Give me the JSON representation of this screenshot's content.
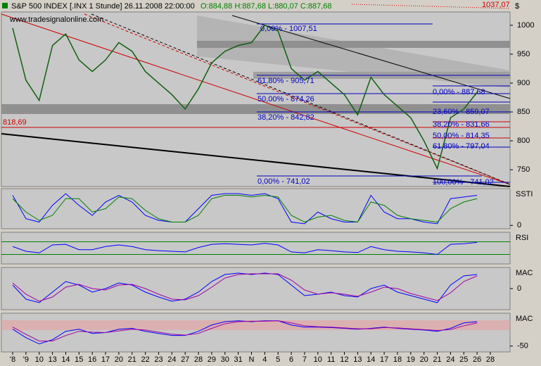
{
  "chart_data": [
    {
      "type": "line",
      "title": "S&P 500 INDEX [.INX 1 Stunde] 26.11.2008 22:00:00",
      "subtitle": "O:884,88 H:887,68 L:880,07 C:887,68",
      "watermark": "www.tradesignalonline.com",
      "axis_unit": "$",
      "categories": [
        "'8",
        "'9",
        "10",
        "13",
        "14",
        "15",
        "16",
        "17",
        "20",
        "21",
        "22",
        "23",
        "24",
        "27",
        "28",
        "29",
        "30",
        "31",
        "N",
        "4",
        "5",
        "6",
        "7",
        "10",
        "11",
        "12",
        "13",
        "14",
        "17",
        "18",
        "19",
        "20",
        "21",
        "24",
        "25",
        "26",
        "28"
      ],
      "color": "#106010",
      "values": [
        995,
        905,
        870,
        965,
        985,
        940,
        920,
        940,
        970,
        955,
        920,
        900,
        880,
        855,
        890,
        935,
        955,
        965,
        970,
        1000,
        990,
        925,
        905,
        920,
        900,
        880,
        845,
        910,
        880,
        860,
        840,
        800,
        752,
        840,
        855,
        884,
        null
      ],
      "ylim": [
        721,
        1023
      ],
      "yticks": [
        750,
        800,
        850,
        900,
        950,
        1000
      ],
      "annotations": [
        "1037,07",
        "818,69",
        "0,00% - 1007,51",
        "61,80% - 905,71",
        "50,00% - 874,26",
        "38,20% - 842,82",
        "0,00% - 741,02",
        "0,00% - 887,68",
        "23,60% - 859,07",
        "38,20% - 831,66",
        "50,00% - 814,35",
        "61,80% - 797,04",
        "100,00% - 741,02"
      ]
    },
    {
      "type": "line",
      "title": "SSTI",
      "ylim": [
        -10,
        110
      ],
      "yticks": [
        0
      ],
      "series": [
        {
          "color": "#0000ff",
          "values": [
            90,
            20,
            10,
            60,
            95,
            60,
            30,
            70,
            90,
            70,
            30,
            15,
            10,
            10,
            50,
            90,
            95,
            95,
            90,
            95,
            80,
            10,
            5,
            40,
            20,
            10,
            10,
            90,
            40,
            20,
            20,
            10,
            5,
            80,
            85,
            90,
            null
          ]
        },
        {
          "color": "#008000",
          "values": [
            80,
            40,
            15,
            30,
            80,
            80,
            40,
            50,
            85,
            80,
            45,
            20,
            10,
            10,
            30,
            80,
            90,
            90,
            85,
            90,
            85,
            30,
            10,
            25,
            30,
            15,
            10,
            70,
            60,
            30,
            20,
            15,
            10,
            50,
            70,
            80,
            null
          ]
        }
      ]
    },
    {
      "type": "line",
      "title": "RSI",
      "ylim": [
        0,
        100
      ],
      "hlines": [
        30,
        70
      ],
      "series": [
        {
          "color": "#0000ff",
          "values": [
            55,
            40,
            35,
            60,
            62,
            45,
            45,
            55,
            60,
            55,
            45,
            42,
            40,
            38,
            52,
            62,
            64,
            62,
            60,
            65,
            60,
            38,
            35,
            45,
            42,
            38,
            36,
            55,
            45,
            40,
            38,
            35,
            30,
            62,
            64,
            68,
            null
          ]
        }
      ]
    },
    {
      "type": "line",
      "title": "MAC",
      "ylim": [
        -30,
        30
      ],
      "yticks": [
        0
      ],
      "series": [
        {
          "color": "#0000ff",
          "values": [
            5,
            -15,
            -20,
            -5,
            10,
            5,
            -5,
            0,
            8,
            5,
            -5,
            -12,
            -18,
            -15,
            -5,
            10,
            20,
            22,
            20,
            22,
            20,
            5,
            -10,
            -8,
            -5,
            -10,
            -12,
            0,
            5,
            -5,
            -10,
            -15,
            -20,
            5,
            18,
            20,
            null
          ]
        },
        {
          "color": "#a000a0",
          "values": [
            8,
            -8,
            -18,
            -12,
            2,
            6,
            0,
            -2,
            5,
            6,
            0,
            -8,
            -15,
            -16,
            -10,
            2,
            15,
            20,
            21,
            21,
            21,
            12,
            -2,
            -8,
            -6,
            -8,
            -11,
            -5,
            2,
            0,
            -7,
            -12,
            -17,
            -6,
            10,
            18,
            null
          ]
        }
      ]
    },
    {
      "type": "line",
      "title": "MAC",
      "ylim": [
        -64,
        28
      ],
      "yticks": [
        -50
      ],
      "series": [
        {
          "color": "#0000ff",
          "values": [
            -10,
            -30,
            -45,
            -35,
            -15,
            -10,
            -20,
            -18,
            -10,
            -8,
            -15,
            -20,
            -25,
            -25,
            -15,
            0,
            8,
            10,
            8,
            10,
            10,
            0,
            -5,
            -5,
            -6,
            -8,
            -10,
            -8,
            -5,
            -8,
            -10,
            -12,
            -15,
            -8,
            5,
            8,
            null
          ]
        },
        {
          "color": "#a000a0",
          "values": [
            -5,
            -22,
            -38,
            -38,
            -25,
            -15,
            -17,
            -18,
            -14,
            -10,
            -12,
            -17,
            -22,
            -24,
            -20,
            -8,
            3,
            8,
            9,
            9,
            10,
            5,
            -2,
            -4,
            -5,
            -7,
            -9,
            -9,
            -6,
            -7,
            -9,
            -11,
            -13,
            -11,
            -2,
            5,
            null
          ]
        }
      ]
    }
  ]
}
